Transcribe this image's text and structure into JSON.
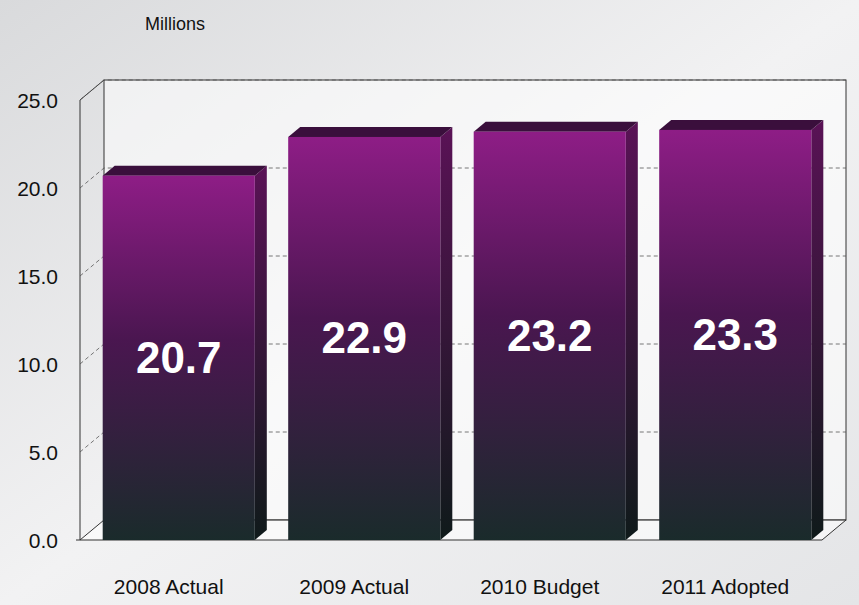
{
  "chart_data": {
    "type": "bar",
    "y_label": "Millions",
    "categories": [
      "2008 Actual",
      "2009 Actual",
      "2010 Budget",
      "2011 Adopted"
    ],
    "values": [
      20.7,
      22.9,
      23.2,
      23.3
    ],
    "color": "#8e1d86",
    "ylim": [
      0,
      25
    ],
    "yticks": [
      {
        "value": 0,
        "label": "0.0"
      },
      {
        "value": 5,
        "label": "5.0"
      },
      {
        "value": 10,
        "label": "10.0"
      },
      {
        "value": 15,
        "label": "15.0"
      },
      {
        "value": 20,
        "label": "20.0"
      },
      {
        "value": 25,
        "label": "25.0"
      }
    ],
    "grid": true,
    "data_labels": true
  }
}
